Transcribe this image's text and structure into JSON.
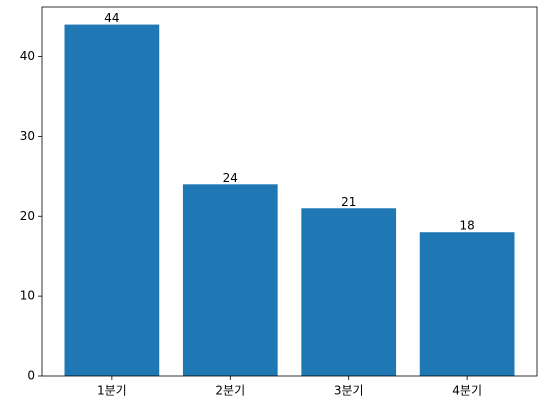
{
  "chart_data": {
    "type": "bar",
    "categories": [
      "1분기",
      "2분기",
      "3분기",
      "4분기"
    ],
    "values": [
      44,
      24,
      21,
      18
    ],
    "color": "#1f77b4",
    "ylim": [
      0,
      46.2
    ],
    "yticks": [
      0,
      10,
      20,
      30,
      40
    ],
    "grid": false
  }
}
